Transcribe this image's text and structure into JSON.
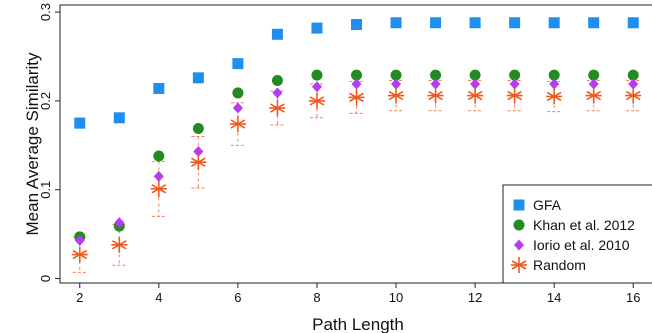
{
  "chart_data": {
    "type": "scatter",
    "xlabel": "Path Length",
    "ylabel": "Mean Average Similarity",
    "x": [
      2,
      3,
      4,
      5,
      6,
      7,
      8,
      9,
      10,
      11,
      12,
      13,
      14,
      15,
      16
    ],
    "xlim": [
      1.5,
      16.5
    ],
    "ylim": [
      -0.005,
      0.308
    ],
    "xticks": [
      "2",
      "4",
      "6",
      "8",
      "10",
      "12",
      "14",
      "16"
    ],
    "yticks": [
      "0",
      "0.1",
      "0.2",
      "0.3"
    ],
    "grid": false,
    "legend_position": "bottom-right",
    "series": [
      {
        "name": "GFA",
        "marker": "square",
        "color": "#1f8fef",
        "values": [
          0.175,
          0.181,
          0.214,
          0.226,
          0.242,
          0.275,
          0.282,
          0.286,
          0.288,
          0.288,
          0.288,
          0.288,
          0.288,
          0.288,
          0.288
        ]
      },
      {
        "name": "Khan et al. 2012",
        "marker": "circle",
        "color": "#228b22",
        "values": [
          0.047,
          0.059,
          0.138,
          0.169,
          0.209,
          0.223,
          0.229,
          0.229,
          0.229,
          0.229,
          0.229,
          0.229,
          0.229,
          0.229,
          0.229
        ]
      },
      {
        "name": "Iorio et al. 2010",
        "marker": "diamond",
        "color": "#b43cf5",
        "values": [
          0.043,
          0.063,
          0.115,
          0.143,
          0.192,
          0.209,
          0.216,
          0.219,
          0.219,
          0.219,
          0.219,
          0.219,
          0.219,
          0.219,
          0.219
        ]
      },
      {
        "name": "Random",
        "marker": "asterisk",
        "color": "#f05a1e",
        "values": [
          0.027,
          0.038,
          0.101,
          0.131,
          0.174,
          0.192,
          0.2,
          0.204,
          0.206,
          0.206,
          0.206,
          0.206,
          0.205,
          0.206,
          0.206
        ],
        "lower": [
          0.007,
          0.015,
          0.07,
          0.102,
          0.15,
          0.173,
          0.181,
          0.186,
          0.189,
          0.189,
          0.189,
          0.189,
          0.188,
          0.189,
          0.189
        ],
        "upper": [
          0.047,
          0.061,
          0.132,
          0.16,
          0.198,
          0.211,
          0.219,
          0.222,
          0.223,
          0.223,
          0.223,
          0.223,
          0.222,
          0.223,
          0.223
        ]
      }
    ]
  }
}
